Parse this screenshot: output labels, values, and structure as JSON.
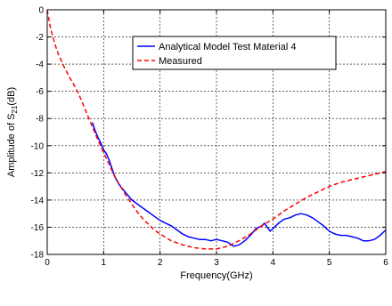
{
  "chart_data": {
    "type": "line",
    "title": "",
    "xlabel": "Frequency(GHz)",
    "ylabel_main": "Amplitude of S",
    "ylabel_sub": "21",
    "ylabel_unit": "(dB)",
    "xlim": [
      0,
      6
    ],
    "ylim": [
      -18,
      0
    ],
    "xticks": [
      0,
      1,
      2,
      3,
      4,
      5,
      6
    ],
    "yticks": [
      0,
      -2,
      -4,
      -6,
      -8,
      -10,
      -12,
      -14,
      -16,
      -18
    ],
    "grid": true,
    "legend_position": "top-right",
    "series": [
      {
        "name": "Analytical Model Test Material 4",
        "color": "#0000ff",
        "style": "solid",
        "points": [
          [
            0.8,
            -8.3
          ],
          [
            0.85,
            -8.9
          ],
          [
            0.9,
            -9.4
          ],
          [
            0.95,
            -9.8
          ],
          [
            1.0,
            -10.3
          ],
          [
            1.05,
            -10.6
          ],
          [
            1.1,
            -11.1
          ],
          [
            1.15,
            -11.7
          ],
          [
            1.2,
            -12.3
          ],
          [
            1.25,
            -12.7
          ],
          [
            1.3,
            -13.0
          ],
          [
            1.4,
            -13.5
          ],
          [
            1.5,
            -14.0
          ],
          [
            1.6,
            -14.3
          ],
          [
            1.7,
            -14.6
          ],
          [
            1.8,
            -14.9
          ],
          [
            1.9,
            -15.2
          ],
          [
            2.0,
            -15.5
          ],
          [
            2.1,
            -15.7
          ],
          [
            2.2,
            -15.9
          ],
          [
            2.3,
            -16.2
          ],
          [
            2.4,
            -16.5
          ],
          [
            2.5,
            -16.7
          ],
          [
            2.6,
            -16.8
          ],
          [
            2.7,
            -16.9
          ],
          [
            2.8,
            -16.9
          ],
          [
            2.9,
            -17.0
          ],
          [
            3.0,
            -16.9
          ],
          [
            3.1,
            -17.0
          ],
          [
            3.2,
            -17.1
          ],
          [
            3.3,
            -17.4
          ],
          [
            3.4,
            -17.3
          ],
          [
            3.5,
            -17.0
          ],
          [
            3.6,
            -16.6
          ],
          [
            3.7,
            -16.1
          ],
          [
            3.8,
            -15.9
          ],
          [
            3.85,
            -15.7
          ],
          [
            3.9,
            -16.0
          ],
          [
            3.95,
            -16.3
          ],
          [
            4.0,
            -16.1
          ],
          [
            4.1,
            -15.7
          ],
          [
            4.2,
            -15.4
          ],
          [
            4.3,
            -15.3
          ],
          [
            4.4,
            -15.1
          ],
          [
            4.5,
            -15.0
          ],
          [
            4.6,
            -15.1
          ],
          [
            4.7,
            -15.3
          ],
          [
            4.8,
            -15.6
          ],
          [
            4.9,
            -15.9
          ],
          [
            5.0,
            -16.3
          ],
          [
            5.1,
            -16.5
          ],
          [
            5.2,
            -16.6
          ],
          [
            5.3,
            -16.6
          ],
          [
            5.4,
            -16.7
          ],
          [
            5.5,
            -16.8
          ],
          [
            5.6,
            -17.0
          ],
          [
            5.7,
            -17.0
          ],
          [
            5.8,
            -16.9
          ],
          [
            5.9,
            -16.6
          ],
          [
            6.0,
            -16.2
          ]
        ]
      },
      {
        "name": "Measured",
        "color": "#ff0000",
        "style": "dashed",
        "points": [
          [
            0.0,
            0.0
          ],
          [
            0.05,
            -1.2
          ],
          [
            0.1,
            -2.0
          ],
          [
            0.15,
            -2.7
          ],
          [
            0.2,
            -3.3
          ],
          [
            0.3,
            -4.2
          ],
          [
            0.4,
            -5.0
          ],
          [
            0.5,
            -5.7
          ],
          [
            0.6,
            -6.6
          ],
          [
            0.7,
            -7.6
          ],
          [
            0.8,
            -8.6
          ],
          [
            0.9,
            -9.6
          ],
          [
            1.0,
            -10.5
          ],
          [
            1.1,
            -11.4
          ],
          [
            1.2,
            -12.3
          ],
          [
            1.3,
            -13.0
          ],
          [
            1.4,
            -13.7
          ],
          [
            1.5,
            -14.3
          ],
          [
            1.6,
            -14.9
          ],
          [
            1.7,
            -15.4
          ],
          [
            1.8,
            -15.8
          ],
          [
            1.9,
            -16.2
          ],
          [
            2.0,
            -16.5
          ],
          [
            2.2,
            -17.0
          ],
          [
            2.4,
            -17.3
          ],
          [
            2.6,
            -17.5
          ],
          [
            2.8,
            -17.6
          ],
          [
            3.0,
            -17.6
          ],
          [
            3.2,
            -17.4
          ],
          [
            3.4,
            -17.0
          ],
          [
            3.6,
            -16.5
          ],
          [
            3.8,
            -15.9
          ],
          [
            4.0,
            -15.4
          ],
          [
            4.2,
            -14.8
          ],
          [
            4.4,
            -14.3
          ],
          [
            4.6,
            -13.8
          ],
          [
            4.8,
            -13.4
          ],
          [
            5.0,
            -13.0
          ],
          [
            5.2,
            -12.7
          ],
          [
            5.4,
            -12.5
          ],
          [
            5.6,
            -12.3
          ],
          [
            5.8,
            -12.1
          ],
          [
            6.0,
            -11.9
          ]
        ]
      }
    ]
  }
}
